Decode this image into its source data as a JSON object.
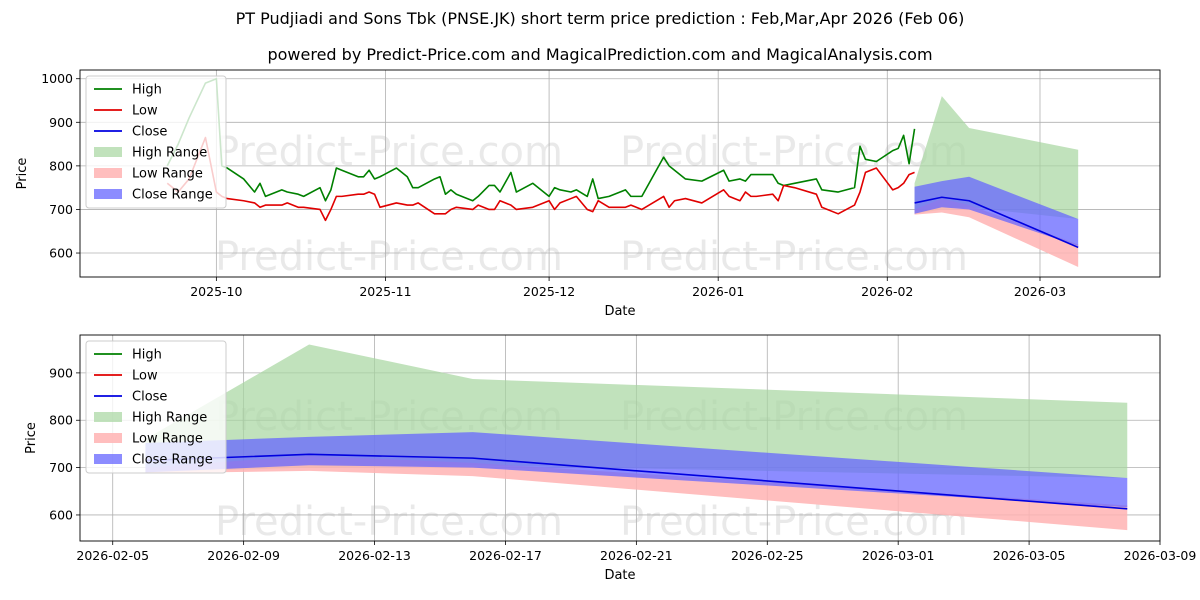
{
  "header": {
    "title": "PT Pudjiadi and Sons Tbk (PNSE.JK) short term price prediction : Feb,Mar,Apr 2026 (Feb 06)",
    "subtitle": "powered by Predict-Price.com and MagicalPrediction.com and MagicalAnalysis.com"
  },
  "watermark": "Predict-Price.com",
  "colors": {
    "high": "#008000",
    "low": "#e00000",
    "close": "#0000e0",
    "high_range": "#a6d6a0",
    "low_range": "#ffb3b3",
    "close_range": "#6666ff",
    "grid": "#b0b0b0"
  },
  "legend": [
    "High",
    "Low",
    "Close",
    "High Range",
    "Low Range",
    "Close Range"
  ],
  "chart_data": [
    {
      "type": "line",
      "name": "top-chart",
      "xlabel": "Date",
      "ylabel": "Price",
      "x_domain": [
        "2025-09-06",
        "2026-03-23"
      ],
      "ylim": [
        545,
        1020
      ],
      "x_ticks": [
        {
          "date": "2025-10-01",
          "label": "2025-10"
        },
        {
          "date": "2025-11-01",
          "label": "2025-11"
        },
        {
          "date": "2025-12-01",
          "label": "2025-12"
        },
        {
          "date": "2026-01-01",
          "label": "2026-01"
        },
        {
          "date": "2026-02-01",
          "label": "2026-02"
        },
        {
          "date": "2026-03-01",
          "label": "2026-03"
        }
      ],
      "y_ticks": [
        600,
        700,
        800,
        900,
        1000
      ],
      "grid": true,
      "legend_position": "upper-left",
      "high": [
        [
          "2025-09-22",
          800
        ],
        [
          "2025-09-24",
          850
        ],
        [
          "2025-09-26",
          910
        ],
        [
          "2025-09-29",
          990
        ],
        [
          "2025-10-01",
          1000
        ],
        [
          "2025-10-02",
          800
        ],
        [
          "2025-10-03",
          795
        ],
        [
          "2025-10-06",
          770
        ],
        [
          "2025-10-08",
          740
        ],
        [
          "2025-10-09",
          760
        ],
        [
          "2025-10-10",
          730
        ],
        [
          "2025-10-13",
          745
        ],
        [
          "2025-10-14",
          740
        ],
        [
          "2025-10-16",
          735
        ],
        [
          "2025-10-17",
          730
        ],
        [
          "2025-10-20",
          750
        ],
        [
          "2025-10-21",
          720
        ],
        [
          "2025-10-22",
          745
        ],
        [
          "2025-10-23",
          795
        ],
        [
          "2025-10-24",
          790
        ],
        [
          "2025-10-27",
          775
        ],
        [
          "2025-10-28",
          775
        ],
        [
          "2025-10-29",
          790
        ],
        [
          "2025-10-30",
          770
        ],
        [
          "2025-10-31",
          775
        ],
        [
          "2025-11-03",
          795
        ],
        [
          "2025-11-05",
          775
        ],
        [
          "2025-11-06",
          750
        ],
        [
          "2025-11-07",
          750
        ],
        [
          "2025-11-10",
          770
        ],
        [
          "2025-11-11",
          775
        ],
        [
          "2025-11-12",
          735
        ],
        [
          "2025-11-13",
          745
        ],
        [
          "2025-11-14",
          735
        ],
        [
          "2025-11-17",
          720
        ],
        [
          "2025-11-18",
          730
        ],
        [
          "2025-11-20",
          755
        ],
        [
          "2025-11-21",
          755
        ],
        [
          "2025-11-22",
          740
        ],
        [
          "2025-11-24",
          785
        ],
        [
          "2025-11-25",
          740
        ],
        [
          "2025-11-28",
          760
        ],
        [
          "2025-12-01",
          730
        ],
        [
          "2025-12-02",
          750
        ],
        [
          "2025-12-03",
          745
        ],
        [
          "2025-12-05",
          740
        ],
        [
          "2025-12-06",
          745
        ],
        [
          "2025-12-08",
          730
        ],
        [
          "2025-12-09",
          770
        ],
        [
          "2025-12-10",
          725
        ],
        [
          "2025-12-12",
          730
        ],
        [
          "2025-12-15",
          745
        ],
        [
          "2025-12-16",
          730
        ],
        [
          "2025-12-18",
          730
        ],
        [
          "2025-12-22",
          820
        ],
        [
          "2025-12-23",
          800
        ],
        [
          "2025-12-24",
          790
        ],
        [
          "2025-12-26",
          770
        ],
        [
          "2025-12-29",
          765
        ],
        [
          "2026-01-02",
          790
        ],
        [
          "2026-01-03",
          765
        ],
        [
          "2026-01-05",
          770
        ],
        [
          "2026-01-06",
          765
        ],
        [
          "2026-01-07",
          780
        ],
        [
          "2026-01-08",
          780
        ],
        [
          "2026-01-11",
          780
        ],
        [
          "2026-01-12",
          760
        ],
        [
          "2026-01-13",
          755
        ],
        [
          "2026-01-15",
          760
        ],
        [
          "2026-01-19",
          770
        ],
        [
          "2026-01-20",
          745
        ],
        [
          "2026-01-23",
          740
        ],
        [
          "2026-01-26",
          750
        ],
        [
          "2026-01-27",
          845
        ],
        [
          "2026-01-28",
          815
        ],
        [
          "2026-01-30",
          810
        ],
        [
          "2026-02-02",
          835
        ],
        [
          "2026-02-03",
          840
        ],
        [
          "2026-02-04",
          870
        ],
        [
          "2026-02-05",
          805
        ],
        [
          "2026-02-06",
          885
        ]
      ],
      "low": [
        [
          "2025-09-22",
          760
        ],
        [
          "2025-09-24",
          740
        ],
        [
          "2025-09-26",
          770
        ],
        [
          "2025-09-29",
          865
        ],
        [
          "2025-10-01",
          740
        ],
        [
          "2025-10-02",
          730
        ],
        [
          "2025-10-03",
          725
        ],
        [
          "2025-10-06",
          720
        ],
        [
          "2025-10-08",
          715
        ],
        [
          "2025-10-09",
          705
        ],
        [
          "2025-10-10",
          710
        ],
        [
          "2025-10-13",
          710
        ],
        [
          "2025-10-14",
          715
        ],
        [
          "2025-10-16",
          705
        ],
        [
          "2025-10-17",
          705
        ],
        [
          "2025-10-20",
          700
        ],
        [
          "2025-10-21",
          675
        ],
        [
          "2025-10-22",
          700
        ],
        [
          "2025-10-23",
          730
        ],
        [
          "2025-10-24",
          730
        ],
        [
          "2025-10-27",
          735
        ],
        [
          "2025-10-28",
          735
        ],
        [
          "2025-10-29",
          740
        ],
        [
          "2025-10-30",
          735
        ],
        [
          "2025-10-31",
          705
        ],
        [
          "2025-11-03",
          715
        ],
        [
          "2025-11-05",
          710
        ],
        [
          "2025-11-06",
          710
        ],
        [
          "2025-11-07",
          715
        ],
        [
          "2025-11-10",
          690
        ],
        [
          "2025-11-11",
          690
        ],
        [
          "2025-11-12",
          690
        ],
        [
          "2025-11-13",
          700
        ],
        [
          "2025-11-14",
          705
        ],
        [
          "2025-11-17",
          700
        ],
        [
          "2025-11-18",
          710
        ],
        [
          "2025-11-20",
          700
        ],
        [
          "2025-11-21",
          700
        ],
        [
          "2025-11-22",
          720
        ],
        [
          "2025-11-24",
          710
        ],
        [
          "2025-11-25",
          700
        ],
        [
          "2025-11-28",
          705
        ],
        [
          "2025-12-01",
          720
        ],
        [
          "2025-12-02",
          700
        ],
        [
          "2025-12-03",
          715
        ],
        [
          "2025-12-05",
          725
        ],
        [
          "2025-12-06",
          730
        ],
        [
          "2025-12-08",
          700
        ],
        [
          "2025-12-09",
          695
        ],
        [
          "2025-12-10",
          720
        ],
        [
          "2025-12-12",
          705
        ],
        [
          "2025-12-15",
          705
        ],
        [
          "2025-12-16",
          710
        ],
        [
          "2025-12-18",
          700
        ],
        [
          "2025-12-22",
          730
        ],
        [
          "2025-12-23",
          705
        ],
        [
          "2025-12-24",
          720
        ],
        [
          "2025-12-26",
          725
        ],
        [
          "2025-12-29",
          715
        ],
        [
          "2026-01-02",
          745
        ],
        [
          "2026-01-03",
          730
        ],
        [
          "2026-01-05",
          720
        ],
        [
          "2026-01-06",
          740
        ],
        [
          "2026-01-07",
          730
        ],
        [
          "2026-01-08",
          730
        ],
        [
          "2026-01-11",
          735
        ],
        [
          "2026-01-12",
          720
        ],
        [
          "2026-01-13",
          755
        ],
        [
          "2026-01-15",
          750
        ],
        [
          "2026-01-19",
          735
        ],
        [
          "2026-01-20",
          705
        ],
        [
          "2026-01-23",
          690
        ],
        [
          "2026-01-26",
          710
        ],
        [
          "2026-01-27",
          740
        ],
        [
          "2026-01-28",
          785
        ],
        [
          "2026-01-30",
          795
        ],
        [
          "2026-02-02",
          745
        ],
        [
          "2026-02-03",
          750
        ],
        [
          "2026-02-04",
          760
        ],
        [
          "2026-02-05",
          780
        ],
        [
          "2026-02-06",
          785
        ]
      ],
      "forecast": {
        "dates": [
          "2026-02-06",
          "2026-02-11",
          "2026-02-16",
          "2026-03-08"
        ],
        "close": [
          715,
          728,
          720,
          613
        ],
        "high_range": [
          [
            690,
            760
          ],
          [
            700,
            960
          ],
          [
            705,
            887
          ],
          [
            678,
            837
          ]
        ],
        "low_range": [
          [
            688,
            700
          ],
          [
            693,
            725
          ],
          [
            682,
            710
          ],
          [
            568,
            620
          ]
        ],
        "close_range": [
          [
            690,
            752
          ],
          [
            705,
            765
          ],
          [
            700,
            775
          ],
          [
            616,
            678
          ]
        ]
      }
    },
    {
      "type": "line",
      "name": "bottom-chart",
      "xlabel": "Date",
      "ylabel": "Price",
      "x_domain": [
        "2026-02-04",
        "2026-03-09"
      ],
      "ylim": [
        545,
        980
      ],
      "x_ticks": [
        {
          "date": "2026-02-05",
          "label": "2026-02-05"
        },
        {
          "date": "2026-02-09",
          "label": "2026-02-09"
        },
        {
          "date": "2026-02-13",
          "label": "2026-02-13"
        },
        {
          "date": "2026-02-17",
          "label": "2026-02-17"
        },
        {
          "date": "2026-02-21",
          "label": "2026-02-21"
        },
        {
          "date": "2026-02-25",
          "label": "2026-02-25"
        },
        {
          "date": "2026-03-01",
          "label": "2026-03-01"
        },
        {
          "date": "2026-03-05",
          "label": "2026-03-05"
        },
        {
          "date": "2026-03-09",
          "label": "2026-03-09"
        }
      ],
      "y_ticks": [
        600,
        700,
        800,
        900
      ],
      "grid": true,
      "legend_position": "upper-left",
      "forecast": {
        "dates": [
          "2026-02-06",
          "2026-02-11",
          "2026-02-16",
          "2026-03-08"
        ],
        "close": [
          715,
          728,
          720,
          613
        ],
        "high_range": [
          [
            690,
            760
          ],
          [
            700,
            960
          ],
          [
            705,
            887
          ],
          [
            678,
            837
          ]
        ],
        "low_range": [
          [
            688,
            700
          ],
          [
            693,
            725
          ],
          [
            682,
            710
          ],
          [
            568,
            620
          ]
        ],
        "close_range": [
          [
            690,
            752
          ],
          [
            705,
            765
          ],
          [
            700,
            775
          ],
          [
            616,
            678
          ]
        ]
      }
    }
  ]
}
